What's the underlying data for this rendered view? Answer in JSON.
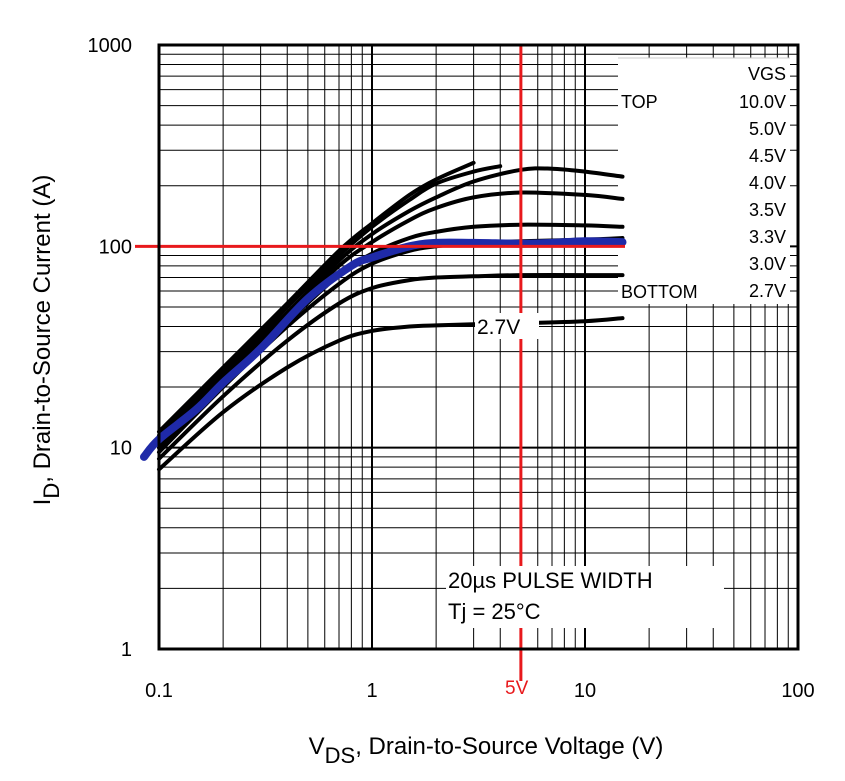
{
  "chart_data": {
    "type": "line",
    "title": "",
    "xlabel_main": "V",
    "xlabel_sub": "DS",
    "xlabel_rest": ", Drain-to-Source Voltage (V)",
    "ylabel_main": "I",
    "ylabel_sub": "D",
    "ylabel_rest": ", Drain-to-Source Current (A)",
    "x_scale": "log",
    "y_scale": "log",
    "xlim": [
      0.1,
      100
    ],
    "ylim": [
      1,
      1000
    ],
    "x_ticks": [
      {
        "value": 0.1,
        "label": "0.1"
      },
      {
        "value": 1,
        "label": "1"
      },
      {
        "value": 10,
        "label": "10"
      },
      {
        "value": 100,
        "label": "100"
      }
    ],
    "y_ticks": [
      {
        "value": 1,
        "label": "1"
      },
      {
        "value": 10,
        "label": "10"
      },
      {
        "value": 100,
        "label": "100"
      },
      {
        "value": 1000,
        "label": "1000"
      }
    ],
    "grid": true,
    "legend": {
      "placement": "top-right",
      "header": "VGS",
      "top_label": "TOP",
      "bottom_label": "BOTTOM",
      "values": [
        "10.0V",
        "5.0V",
        "4.5V",
        "4.0V",
        "3.5V",
        "3.3V",
        "3.0V",
        "2.7V"
      ]
    },
    "annotations": {
      "curve_label": "2.7V",
      "pulse_line1": "20µs PULSE WIDTH",
      "pulse_line2": "Tj = 25°C",
      "marker_label": "5V"
    },
    "colors": {
      "curves": "#000000",
      "overlay_trace": "#1f2aa8",
      "reference_lines": "#e8191c"
    },
    "series": [
      {
        "x": [
          0.1,
          0.2,
          0.4,
          0.7,
          1.0,
          1.5,
          2.0,
          3.0
        ],
        "y": [
          12,
          25,
          52,
          95,
          130,
          180,
          215,
          260
        ]
      },
      {
        "x": [
          0.1,
          0.2,
          0.4,
          0.7,
          1.0,
          1.5,
          2.0,
          3.0,
          4.0
        ],
        "y": [
          11.5,
          24,
          50,
          90,
          125,
          170,
          205,
          235,
          250
        ]
      },
      {
        "x": [
          0.1,
          0.2,
          0.4,
          0.7,
          1.0,
          1.5,
          2.0,
          3.0,
          5.0,
          7.0,
          10.0,
          15.0
        ],
        "y": [
          11,
          23,
          47,
          85,
          115,
          150,
          175,
          210,
          240,
          243,
          235,
          222
        ]
      },
      {
        "x": [
          0.1,
          0.2,
          0.4,
          0.7,
          1.0,
          1.5,
          2.0,
          3.0,
          5.0,
          10.0,
          15.0
        ],
        "y": [
          10.5,
          22,
          45,
          80,
          105,
          135,
          155,
          175,
          185,
          180,
          172
        ]
      },
      {
        "x": [
          0.1,
          0.2,
          0.4,
          0.7,
          1.0,
          1.5,
          2.0,
          3.0,
          5.0,
          10.0,
          15.0
        ],
        "y": [
          10,
          21,
          42,
          72,
          92,
          110,
          118,
          125,
          128,
          127,
          125
        ]
      },
      {
        "x": [
          0.1,
          0.2,
          0.4,
          0.7,
          1.0,
          1.5,
          2.0,
          3.0,
          5.0,
          10.0,
          15.0
        ],
        "y": [
          9.5,
          20,
          40,
          65,
          82,
          95,
          100,
          104,
          106,
          108,
          110
        ]
      },
      {
        "x": [
          0.1,
          0.2,
          0.4,
          0.7,
          1.0,
          1.5,
          2.0,
          3.0,
          5.0,
          10.0,
          15.0
        ],
        "y": [
          8.8,
          18,
          34,
          52,
          62,
          68,
          70,
          71,
          72,
          72,
          72
        ]
      },
      {
        "x": [
          0.1,
          0.2,
          0.4,
          0.7,
          1.0,
          1.5,
          2.0,
          3.0,
          5.0,
          10.0,
          15.0
        ],
        "y": [
          7.8,
          15,
          25,
          34,
          38,
          40,
          40.5,
          41,
          41.5,
          42.5,
          44
        ]
      }
    ],
    "overlay": {
      "x": [
        0.085,
        0.1,
        0.15,
        0.2,
        0.3,
        0.5,
        0.8,
        1.0,
        1.5,
        2.0,
        3.0,
        5.0,
        7.0,
        10.0,
        15.0
      ],
      "y": [
        9,
        11,
        15.5,
        21,
        31,
        55,
        80,
        88,
        100,
        104,
        104,
        103,
        104,
        106,
        105
      ]
    },
    "reference_lines": {
      "vertical_x": 5,
      "horizontal_y": 100
    }
  }
}
